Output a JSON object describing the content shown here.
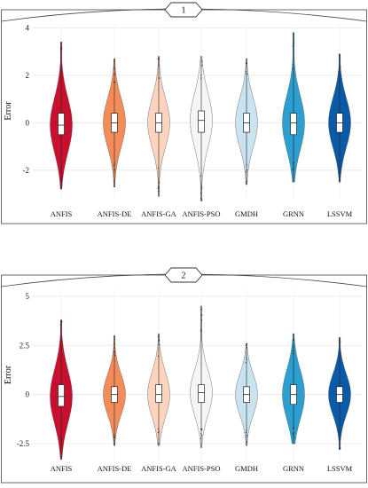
{
  "chart_data": [
    {
      "type": "violin",
      "strip_label": "1",
      "ylabel": "Error",
      "ylim": [
        -3.2,
        4.2
      ],
      "y_ticks": [
        4,
        2,
        0,
        -2
      ],
      "y_tick_labels": [
        "4",
        "2",
        "0",
        "-2"
      ],
      "categories": [
        "ANFIS",
        "ANFIS-DE",
        "ANFIS-GA",
        "ANFIS-PSO",
        "GMDH",
        "GRNN",
        "LSSVM"
      ],
      "grid": true,
      "series": [
        {
          "category": "ANFIS",
          "color": "#c8102e",
          "min": -2.8,
          "q1": -0.5,
          "median": -0.1,
          "q3": 0.4,
          "max": 3.4
        },
        {
          "category": "ANFIS-DE",
          "color": "#f48c5a",
          "min": -2.7,
          "q1": -0.4,
          "median": 0.0,
          "q3": 0.4,
          "max": 2.7
        },
        {
          "category": "ANFIS-GA",
          "color": "#fdd5be",
          "min": -3.1,
          "q1": -0.4,
          "median": 0.0,
          "q3": 0.4,
          "max": 2.8
        },
        {
          "category": "ANFIS-PSO",
          "color": "#f5f5f5",
          "min": -3.3,
          "q1": -0.4,
          "median": 0.1,
          "q3": 0.5,
          "max": 2.8
        },
        {
          "category": "GMDH",
          "color": "#c9e3f0",
          "min": -2.6,
          "q1": -0.4,
          "median": 0.0,
          "q3": 0.4,
          "max": 2.7
        },
        {
          "category": "GRNN",
          "color": "#2c9fd0",
          "min": -2.5,
          "q1": -0.5,
          "median": 0.0,
          "q3": 0.4,
          "max": 3.8
        },
        {
          "category": "LSSVM",
          "color": "#0a5aa8",
          "min": -2.5,
          "q1": -0.4,
          "median": 0.0,
          "q3": 0.4,
          "max": 2.9
        }
      ]
    },
    {
      "type": "violin",
      "strip_label": "2",
      "ylabel": "Error",
      "ylim": [
        -3.4,
        5.4
      ],
      "y_ticks": [
        5,
        2.5,
        0,
        -2.5
      ],
      "y_tick_labels": [
        "5",
        "2.5",
        "0",
        "-2.5"
      ],
      "categories": [
        "ANFIS",
        "ANFIS-DE",
        "ANFIS-GA",
        "ANFIS-PSO",
        "GMDH",
        "GRNN",
        "LSSVM"
      ],
      "grid": true,
      "series": [
        {
          "category": "ANFIS",
          "color": "#c8102e",
          "min": -3.3,
          "q1": -0.6,
          "median": -0.1,
          "q3": 0.5,
          "max": 3.8
        },
        {
          "category": "ANFIS-DE",
          "color": "#f48c5a",
          "min": -2.6,
          "q1": -0.4,
          "median": 0.0,
          "q3": 0.4,
          "max": 3.0
        },
        {
          "category": "ANFIS-GA",
          "color": "#fdd5be",
          "min": -2.6,
          "q1": -0.4,
          "median": 0.0,
          "q3": 0.5,
          "max": 3.1
        },
        {
          "category": "ANFIS-PSO",
          "color": "#f5f5f5",
          "min": -2.7,
          "q1": -0.4,
          "median": 0.1,
          "q3": 0.5,
          "max": 4.5
        },
        {
          "category": "GMDH",
          "color": "#c9e3f0",
          "min": -2.6,
          "q1": -0.4,
          "median": 0.0,
          "q3": 0.4,
          "max": 2.6
        },
        {
          "category": "GRNN",
          "color": "#2c9fd0",
          "min": -2.5,
          "q1": -0.5,
          "median": 0.0,
          "q3": 0.5,
          "max": 3.1
        },
        {
          "category": "LSSVM",
          "color": "#0a5aa8",
          "min": -2.8,
          "q1": -0.4,
          "median": 0.0,
          "q3": 0.4,
          "max": 2.9
        }
      ]
    }
  ]
}
